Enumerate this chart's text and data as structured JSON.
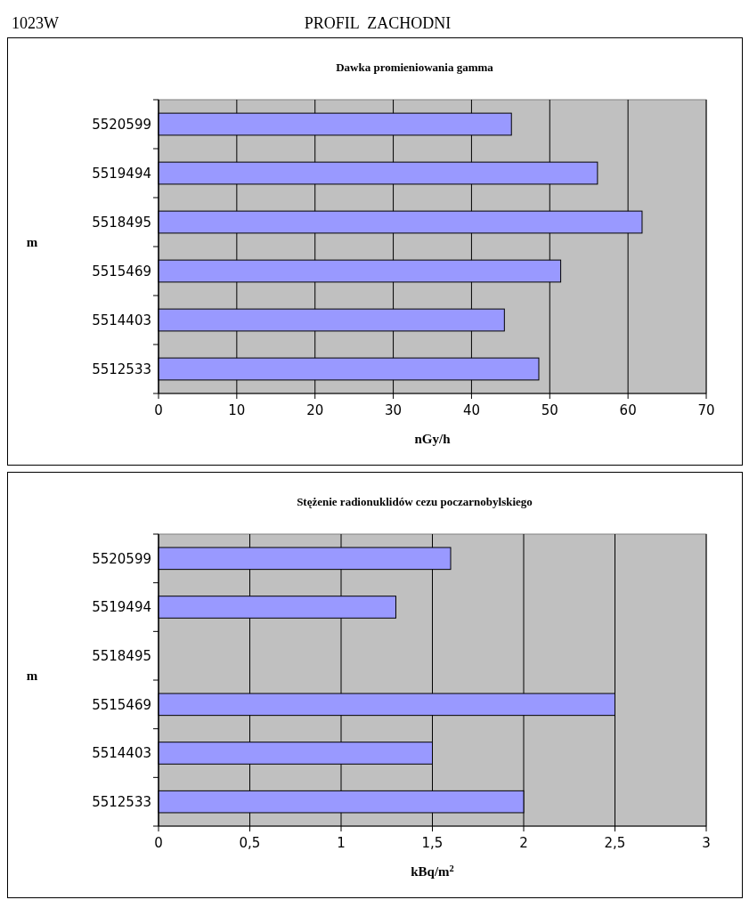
{
  "chart_data": [
    {
      "type": "bar",
      "orientation": "horizontal",
      "title": "Dawka promieniowania gamma",
      "xlabel": "nGy/h",
      "ylabel": "m",
      "annotations": [
        "1023W",
        "PROFIL  ZACHODNI"
      ],
      "categories": [
        "5520599",
        "5519494",
        "5518495",
        "5515469",
        "5514403",
        "5512533"
      ],
      "values": [
        45.1,
        56.1,
        61.8,
        51.4,
        44.2,
        48.6
      ],
      "color": "#9999ff",
      "xlim": [
        0,
        70
      ],
      "xticks": [
        0,
        10,
        20,
        30,
        40,
        50,
        60,
        70
      ],
      "grid": "x"
    },
    {
      "type": "bar",
      "orientation": "horizontal",
      "title": "Stężenie radionuklidów cezu poczarnobylskiego",
      "xlabel": "kBq/m$^{2}$",
      "ylabel": "m",
      "categories": [
        "5520599",
        "5519494",
        "5518495",
        "5515469",
        "5514403",
        "5512533"
      ],
      "values": [
        1.6,
        1.3,
        null,
        2.5,
        1.5,
        2.0
      ],
      "color": "#9999ff",
      "xlim": [
        0,
        3
      ],
      "xticks": [
        {
          "value": 0,
          "label": "0"
        },
        {
          "value": 0.5,
          "label": "0,5"
        },
        {
          "value": 1,
          "label": "1"
        },
        {
          "value": 1.5,
          "label": "1,5"
        },
        {
          "value": 2,
          "label": "2"
        },
        {
          "value": 2.5,
          "label": "2,5"
        },
        {
          "value": 3,
          "label": "3"
        }
      ],
      "grid": "x"
    }
  ]
}
